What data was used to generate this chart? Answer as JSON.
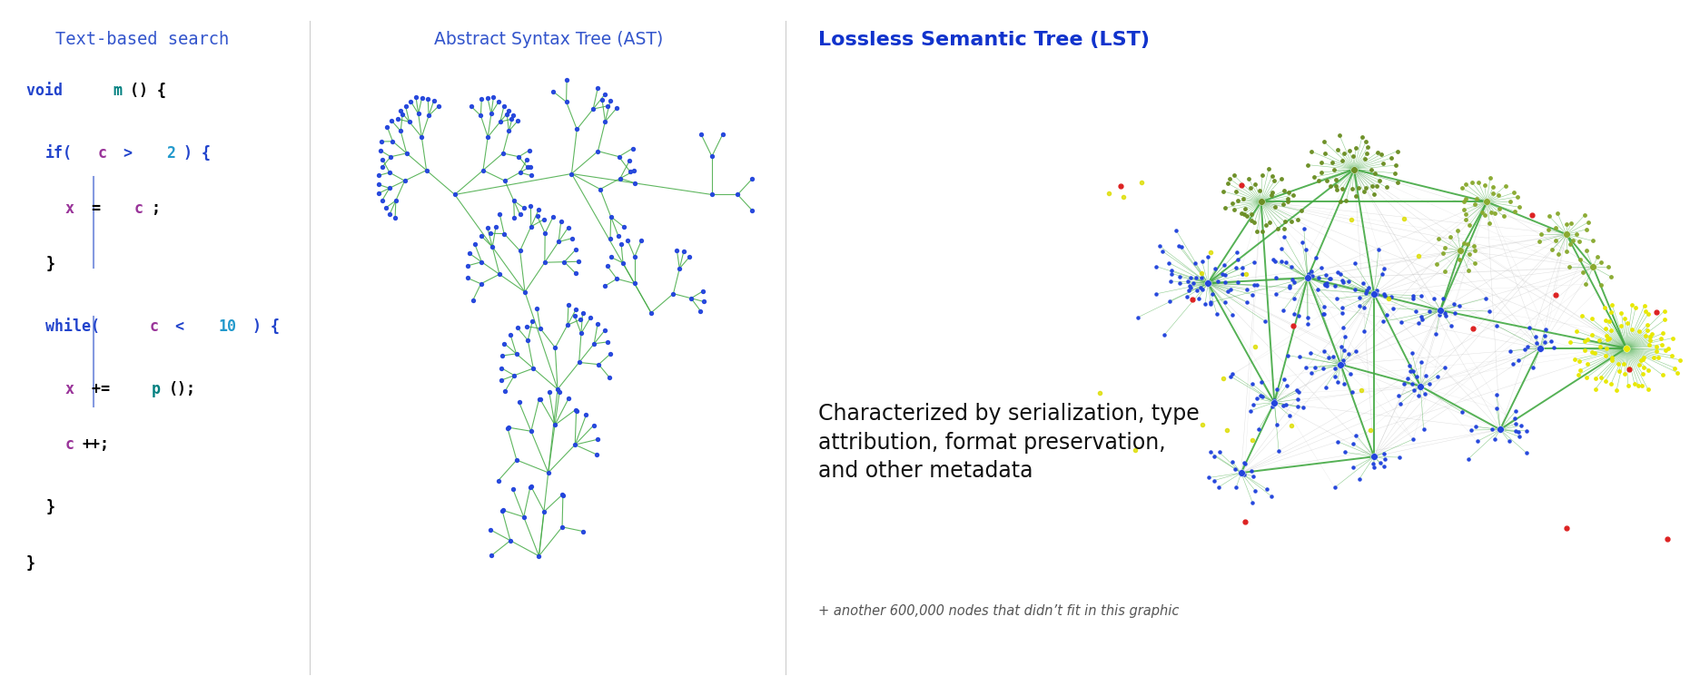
{
  "title_left": "Text-based search",
  "title_mid": "Abstract Syntax Tree (AST)",
  "title_right": "Lossless Semantic Tree (LST)",
  "title_left_color": "#3355cc",
  "title_mid_color": "#3355cc",
  "title_right_color": "#1133cc",
  "annotation_text": "Characterized by serialization, type\nattribution, format preservation,\nand other metadata",
  "annotation_sub": "+ another 600,000 nodes that didn’t fit in this graphic",
  "bg_color": "#ffffff",
  "divider_color": "#cccccc",
  "node_color_blue": "#2244dd",
  "edge_color_green": "#44aa44",
  "edge_color_gray": "#aaaaaa"
}
